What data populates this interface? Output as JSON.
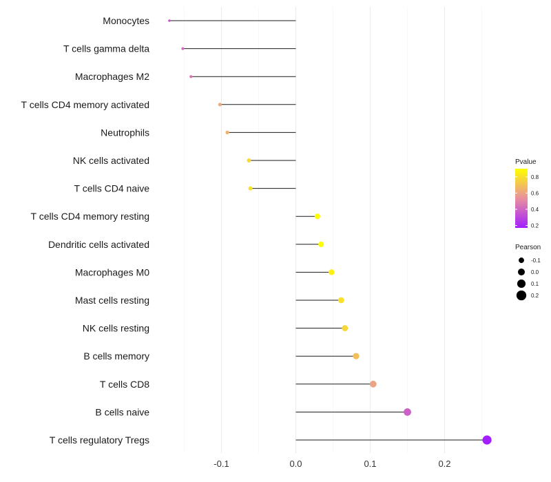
{
  "chart_data": {
    "type": "lollipop",
    "title": "",
    "xlabel": "",
    "ylabel": "",
    "xlim": [
      -0.17,
      0.26
    ],
    "x_ticks": [
      -0.1,
      0.0,
      0.1,
      0.2
    ],
    "x_tick_labels": [
      "-0.1",
      "0.0",
      "0.1",
      "0.2"
    ],
    "grid": true,
    "categories": [
      "Monocytes",
      "T cells gamma delta",
      "Macrophages M2",
      "T cells CD4 memory activated",
      "Neutrophils",
      "NK cells activated",
      "T cells CD4 naive",
      "T cells CD4 memory resting",
      "Dendritic cells activated",
      "Macrophages M0",
      "Mast cells resting",
      "NK cells resting",
      "B cells memory",
      "T cells CD8",
      "B cells naive",
      "T cells regulatory  Tregs"
    ],
    "pearson": [
      -0.17,
      -0.152,
      -0.141,
      -0.102,
      -0.092,
      -0.063,
      -0.061,
      0.029,
      0.034,
      0.048,
      0.061,
      0.066,
      0.081,
      0.104,
      0.15,
      0.257
    ],
    "pvalue": [
      0.35,
      0.42,
      0.45,
      0.62,
      0.65,
      0.78,
      0.8,
      0.9,
      0.89,
      0.85,
      0.8,
      0.77,
      0.69,
      0.6,
      0.38,
      0.17
    ],
    "legend": {
      "pvalue": {
        "title": "Pvalue",
        "ticks": [
          0.8,
          0.6,
          0.4,
          0.2
        ],
        "tick_labels": [
          "0.8",
          "0.6",
          "0.4",
          "0.2"
        ],
        "range": [
          0.17,
          0.9
        ],
        "low_color": "#a31fff",
        "mid_color": "#e8909e",
        "high_color": "#ffff00"
      },
      "pearson": {
        "title": "Pearson",
        "values": [
          -0.1,
          0.0,
          0.1,
          0.2
        ],
        "labels": [
          "-0.1",
          "0.0",
          "0.1",
          "0.2"
        ]
      }
    }
  }
}
